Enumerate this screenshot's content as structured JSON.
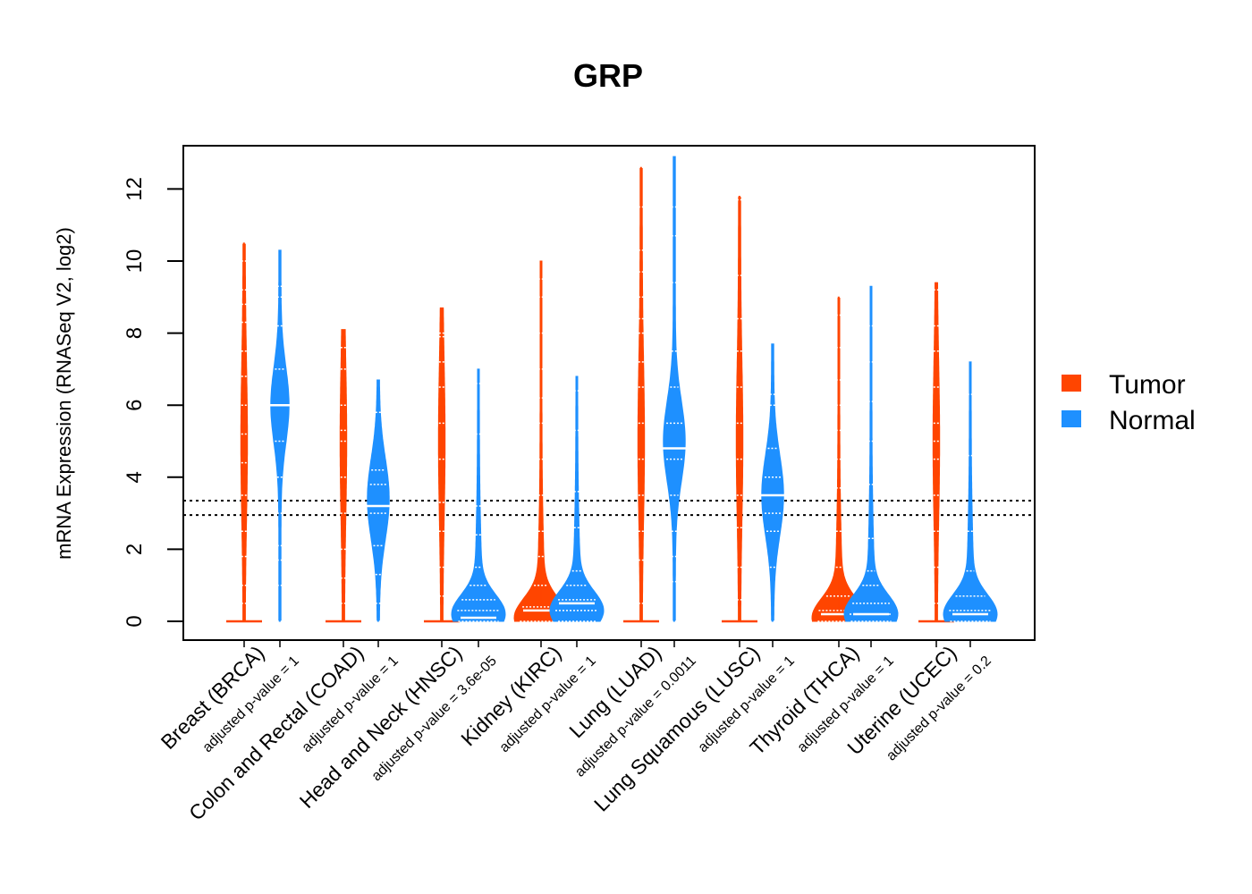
{
  "chart_data": {
    "type": "violin",
    "title": "GRP",
    "ylabel": "mRNA Expression (RNASeq V2, log2)",
    "xlabel": "",
    "ylim": [
      -0.5,
      13.2
    ],
    "yticks": [
      0,
      2,
      4,
      6,
      8,
      10,
      12
    ],
    "reference_lines": [
      2.95,
      3.35
    ],
    "legend": {
      "position": "right",
      "items": [
        {
          "name": "Tumor",
          "color": "#FF4500"
        },
        {
          "name": "Normal",
          "color": "#1E90FF"
        }
      ]
    },
    "categories": [
      {
        "label": "Breast (BRCA)",
        "pvalue": "adjusted p-value = 1",
        "tumor": {
          "max": 10.5,
          "median": 0,
          "shape": "thin",
          "points": [
            0,
            0.5,
            1.0,
            1.8,
            2.5,
            3.5,
            4.4,
            5.2,
            6.0,
            6.8,
            7.5,
            8.3,
            8.8,
            9.2,
            10.0,
            10.5
          ]
        },
        "normal": {
          "max": 10.3,
          "median": 6.0,
          "shape": "upper",
          "peak": 6.0,
          "points": [
            0,
            1.0,
            1.7,
            2.1,
            3.0,
            4.0,
            5.0,
            6.0,
            7.0,
            8.2,
            9.0,
            9.3
          ]
        }
      },
      {
        "label": "Colon and Rectal (COAD)",
        "pvalue": "adjusted p-value = 1",
        "tumor": {
          "max": 8.1,
          "median": 0,
          "shape": "thin",
          "points": [
            0,
            0.5,
            1.2,
            2.0,
            3.0,
            4.0,
            5.0,
            5.3,
            6.0,
            7.0,
            7.6
          ]
        },
        "normal": {
          "max": 6.7,
          "median": 3.2,
          "shape": "mid",
          "peak": 3.4,
          "points": [
            0,
            0.5,
            1.3,
            2.1,
            3.0,
            3.8,
            4.2,
            5.8
          ]
        }
      },
      {
        "label": "Head and Neck (HNSC)",
        "pvalue": "adjusted p-value = 3.6e-05",
        "tumor": {
          "max": 8.7,
          "median": 0,
          "shape": "thin",
          "points": [
            0,
            0.7,
            1.5,
            2.5,
            3.3,
            4.5,
            5.5,
            6.5,
            7.2,
            7.9,
            8.0
          ]
        },
        "normal": {
          "max": 7.0,
          "median": 0.1,
          "shape": "low",
          "peak": 0.2,
          "points": [
            0,
            0.3,
            0.6,
            1.0,
            1.5,
            2.4,
            3.2,
            5.2,
            6.6
          ]
        }
      },
      {
        "label": "Kidney (KIRC)",
        "pvalue": "adjusted p-value = 1",
        "tumor": {
          "max": 10.0,
          "median": 0.3,
          "shape": "low",
          "peak": 0.1,
          "points": [
            0,
            0.4,
            1.0,
            1.8,
            2.5,
            3.5,
            4.5,
            5.5,
            6.2,
            7.0,
            8.0,
            9.0,
            9.5
          ]
        },
        "normal": {
          "max": 6.8,
          "median": 0.5,
          "shape": "low",
          "peak": 0.3,
          "points": [
            0,
            0.3,
            0.6,
            1.0,
            1.4,
            2.6,
            3.6,
            5.3,
            6.4
          ]
        }
      },
      {
        "label": "Lung (LUAD)",
        "pvalue": "adjusted p-value = 0.0011",
        "tumor": {
          "max": 12.6,
          "median": 0,
          "shape": "thin",
          "points": [
            0,
            0.5,
            1.7,
            2.5,
            3.5,
            4.5,
            5.5,
            6.5,
            7.2,
            8.0,
            8.4,
            9.0,
            9.7,
            10.3,
            11.5,
            12.6
          ]
        },
        "normal": {
          "max": 12.9,
          "median": 4.8,
          "shape": "mid",
          "peak": 5.0,
          "points": [
            0,
            1.1,
            1.8,
            2.5,
            3.5,
            4.5,
            4.8,
            5.5,
            6.5,
            7.5,
            9.4,
            10.7,
            11.5
          ]
        }
      },
      {
        "label": "Lung Squamous (LUSC)",
        "pvalue": "adjusted p-value = 1",
        "tumor": {
          "max": 11.8,
          "median": 0,
          "shape": "thin",
          "points": [
            0,
            0.6,
            1.5,
            2.6,
            3.5,
            4.5,
            5.5,
            6.5,
            7.5,
            8.4,
            9.6,
            11.7,
            11.8
          ]
        },
        "normal": {
          "max": 7.7,
          "median": 3.5,
          "shape": "mid",
          "peak": 3.5,
          "points": [
            0,
            1.5,
            2.5,
            3.0,
            3.5,
            4.0,
            4.8,
            6.0,
            6.3
          ]
        }
      },
      {
        "label": "Thyroid (THCA)",
        "pvalue": "adjusted p-value = 1",
        "tumor": {
          "max": 9.0,
          "median": 0.2,
          "shape": "low",
          "peak": 0.1,
          "points": [
            0,
            0.3,
            0.7,
            1.5,
            2.5,
            3.7,
            4.5,
            5.3,
            6.0,
            6.7,
            7.6,
            8.5,
            9.0
          ]
        },
        "normal": {
          "max": 9.3,
          "median": 0.2,
          "shape": "low",
          "peak": 0.2,
          "points": [
            0,
            0.2,
            0.5,
            1.0,
            1.4,
            2.3,
            3.8,
            5.0,
            6.1,
            7.2,
            8.2
          ]
        }
      },
      {
        "label": "Uterine (UCEC)",
        "pvalue": "adjusted p-value = 0.2",
        "tumor": {
          "max": 9.4,
          "median": 0,
          "shape": "thin",
          "points": [
            0,
            0.5,
            1.5,
            2.5,
            3.5,
            4.5,
            5.0,
            5.5,
            6.5,
            7.5,
            8.2,
            9.2
          ]
        },
        "normal": {
          "max": 7.2,
          "median": 0.2,
          "shape": "low",
          "peak": 0.2,
          "points": [
            0,
            0.3,
            0.7,
            1.4,
            2.5,
            4.6,
            6.3
          ]
        }
      }
    ]
  }
}
